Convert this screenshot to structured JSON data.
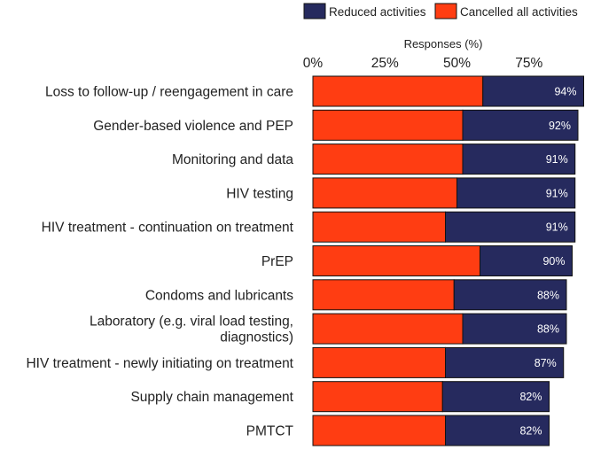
{
  "chart_data": {
    "type": "bar",
    "orientation": "horizontal",
    "stacked": true,
    "xlabel": "Responses (%)",
    "xlim": [
      0,
      100
    ],
    "x_ticks": [
      "0%",
      "25%",
      "50%",
      "75%"
    ],
    "x_tick_values": [
      0,
      25,
      50,
      75
    ],
    "axis_position": "top",
    "grid": false,
    "legend_placement": "top-right",
    "categories": [
      "Loss to follow-up / reengagement in care",
      "Gender-based violence and PEP",
      "Monitoring and data",
      "HIV testing",
      "HIV treatment - continuation on treatment",
      "PrEP",
      "Condoms and lubricants",
      "Laboratory (e.g. viral load testing, diagnostics)",
      "HIV treatment - newly initiating on treatment",
      "Supply chain management",
      "PMTCT"
    ],
    "category_lines": [
      [
        "Loss to follow-up / reengagement in care"
      ],
      [
        "Gender-based violence and PEP"
      ],
      [
        "Monitoring and data"
      ],
      [
        "HIV testing"
      ],
      [
        "HIV treatment - continuation on treatment"
      ],
      [
        "PrEP"
      ],
      [
        "Condoms and lubricants"
      ],
      [
        "Laboratory (e.g. viral load testing,",
        "diagnostics)"
      ],
      [
        "HIV treatment - newly initiating on treatment"
      ],
      [
        "Supply chain management"
      ],
      [
        "PMTCT"
      ]
    ],
    "series": [
      {
        "name": "Cancelled all activities",
        "color": "#ff3d12",
        "values": [
          59,
          52,
          52,
          50,
          46,
          58,
          49,
          52,
          46,
          45,
          46
        ]
      },
      {
        "name": "Reduced activities",
        "color": "#262a5e",
        "values": [
          35,
          40,
          39,
          41,
          45,
          32,
          39,
          36,
          41,
          37,
          36
        ]
      }
    ],
    "legend_order": [
      "Reduced activities",
      "Cancelled all activities"
    ],
    "totals": [
      94,
      92,
      91,
      91,
      91,
      90,
      88,
      88,
      87,
      82,
      82
    ],
    "total_labels": [
      "94%",
      "92%",
      "91%",
      "91%",
      "91%",
      "90%",
      "88%",
      "88%",
      "87%",
      "82%",
      "82%"
    ]
  }
}
